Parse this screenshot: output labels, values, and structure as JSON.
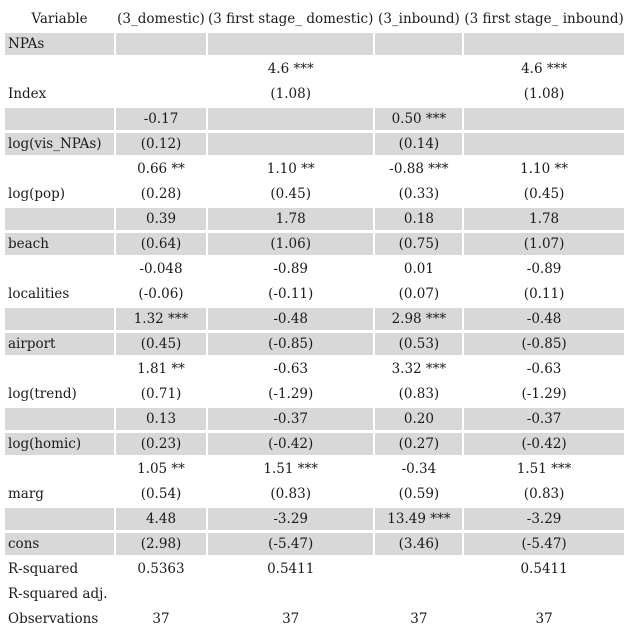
{
  "table": {
    "headers": [
      "Variable",
      "(3_domestic)",
      "(3 first stage_ domestic)",
      "(3_inbound)",
      "(3 first stage_ inbound)"
    ],
    "rows": [
      [
        "NPAs",
        "",
        "",
        "",
        ""
      ],
      [
        "",
        "",
        "4.6 ***",
        "",
        "4.6 ***"
      ],
      [
        "Index",
        "",
        "(1.08)",
        "",
        "(1.08)"
      ],
      [
        "",
        "-0.17",
        "",
        "0.50 ***",
        ""
      ],
      [
        "log(vis_NPAs)",
        "(0.12)",
        "",
        "(0.14)",
        ""
      ],
      [
        "",
        "0.66 **",
        "1.10 **",
        "-0.88 ***",
        "1.10 **"
      ],
      [
        "log(pop)",
        "(0.28)",
        "(0.45)",
        "(0.33)",
        "(0.45)"
      ],
      [
        "",
        "0.39",
        "1.78",
        "0.18",
        "1.78"
      ],
      [
        "beach",
        "(0.64)",
        "(1.06)",
        "(0.75)",
        "(1.07)"
      ],
      [
        "",
        "-0.048",
        "-0.89",
        "0.01",
        "-0.89"
      ],
      [
        "localities",
        "(-0.06)",
        "(-0.11)",
        "(0.07)",
        "(0.11)"
      ],
      [
        "",
        "1.32 ***",
        "-0.48",
        "2.98 ***",
        "-0.48"
      ],
      [
        "airport",
        "(0.45)",
        "(-0.85)",
        "(0.53)",
        "(-0.85)"
      ],
      [
        "",
        "1.81 **",
        "-0.63",
        "3.32 ***",
        "-0.63"
      ],
      [
        "log(trend)",
        "(0.71)",
        "(-1.29)",
        "(0.83)",
        "(-1.29)"
      ],
      [
        "",
        "0.13",
        "-0.37",
        "0.20",
        "-0.37"
      ],
      [
        "log(homic)",
        "(0.23)",
        "(-0.42)",
        "(0.27)",
        "(-0.42)"
      ],
      [
        "",
        "1.05 **",
        "1.51 ***",
        "-0.34",
        "1.51 ***"
      ],
      [
        "marg",
        "(0.54)",
        "(0.83)",
        "(0.59)",
        "(0.83)"
      ],
      [
        "",
        "4.48",
        "-3.29",
        "13.49 ***",
        "-3.29"
      ],
      [
        "cons",
        "(2.98)",
        "(-5.47)",
        "(3.46)",
        "(-5.47)"
      ],
      [
        "R-squared",
        "0.5363",
        "0.5411",
        "",
        "0.5411"
      ],
      [
        "R-squared adj.",
        "",
        "",
        "",
        ""
      ],
      [
        "Observations",
        "37",
        "37",
        "37",
        "37"
      ]
    ]
  }
}
